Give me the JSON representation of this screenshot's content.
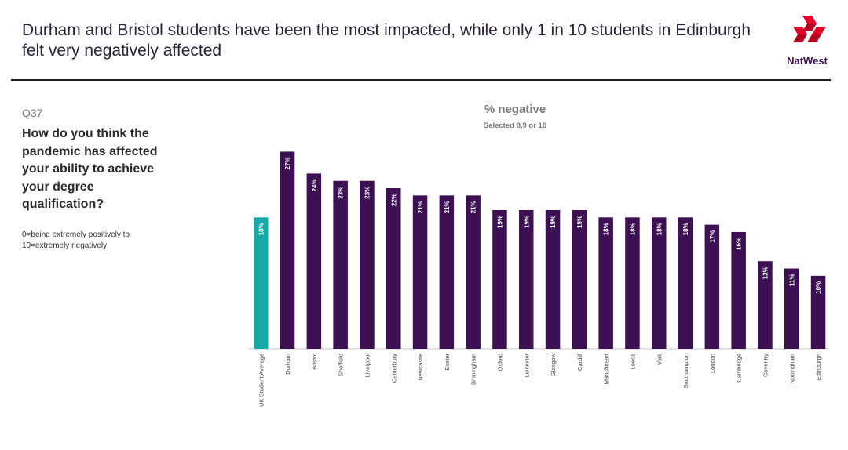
{
  "header": {
    "title": "Durham and Bristol students have been the most impacted, while only 1 in 10 students in Edinburgh felt very negatively affected",
    "brand": "NatWest"
  },
  "colors": {
    "bar": "#3c1053",
    "highlight": "#18aaa8",
    "brand_red": "#e4002b",
    "label": "#ffffff"
  },
  "sidebar": {
    "question_number": "Q37",
    "question": "How do you think the pandemic has affected your ability to achieve your degree qualification?",
    "scale_note": "0=being extremely positively to 10=extremely negatively"
  },
  "chart_data": {
    "type": "bar",
    "title": "% negative",
    "subtitle": "Selected 8,9 or 10",
    "categories": [
      "UK Student Average",
      "Durham",
      "Bristol",
      "Sheffield",
      "Liverpool",
      "Canterbury",
      "Newcastle",
      "Exeter",
      "Birmingham",
      "Oxford",
      "Leicester",
      "Glasgow",
      "Cardiff",
      "Manchester",
      "Leeds",
      "York",
      "Southampton",
      "London",
      "Cambridge",
      "Coventry",
      "Nottingham",
      "Edinburgh"
    ],
    "values": [
      18,
      27,
      24,
      23,
      23,
      22,
      21,
      21,
      21,
      19,
      19,
      19,
      19,
      18,
      18,
      18,
      18,
      17,
      16,
      12,
      11,
      10
    ],
    "value_labels": [
      "18%",
      "27%",
      "24%",
      "23%",
      "23%",
      "22%",
      "21%",
      "21%",
      "21%",
      "19%",
      "19%",
      "19%",
      "19%",
      "18%",
      "18%",
      "18%",
      "18%",
      "17%",
      "16%",
      "12%",
      "11%",
      "10%"
    ],
    "highlight_index": 0,
    "ylim": [
      0,
      28
    ],
    "xlabel": "",
    "ylabel": ""
  }
}
